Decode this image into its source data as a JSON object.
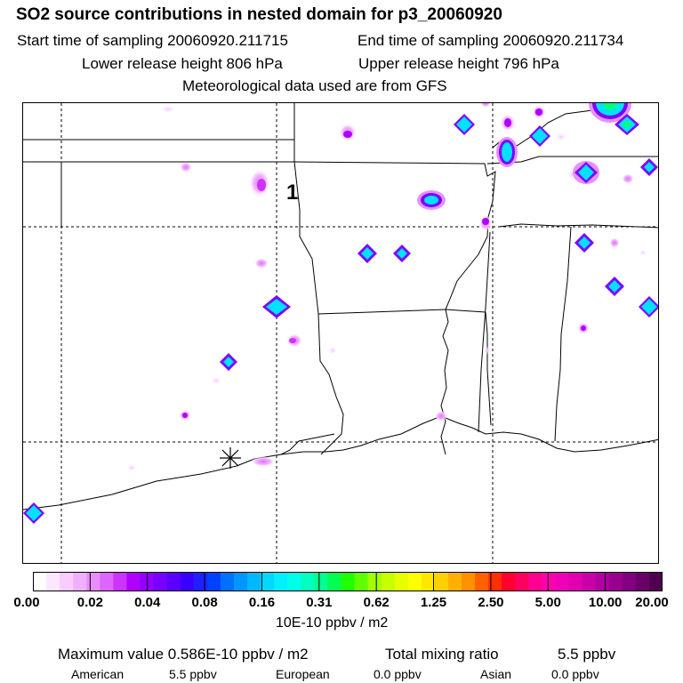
{
  "title": "SO2 source contributions in nested domain for p3_20060920",
  "header": {
    "start_time": "Start time of sampling 20060920.211715",
    "end_time": "End time of sampling 20060920.211734",
    "lower_height": "Lower release height  806 hPa",
    "upper_height": "Upper release height  796 hPa",
    "met_data": "Meteorological data used are from GFS"
  },
  "map": {
    "marker_label": "1",
    "source_symbol": "star-icon"
  },
  "colorbar": {
    "ticks": [
      "0.00",
      "0.02",
      "0.04",
      "0.08",
      "0.16",
      "0.31",
      "0.62",
      "1.25",
      "2.50",
      "5.00",
      "10.00",
      "20.00"
    ],
    "colors": [
      "#ffffff",
      "#fde6ff",
      "#f9ccff",
      "#f0b0ff",
      "#e98cff",
      "#dd66ff",
      "#cc33ff",
      "#b000ff",
      "#9200ff",
      "#7700ff",
      "#5b00ff",
      "#3a00ff",
      "#2020ff",
      "#0040ff",
      "#0070ff",
      "#0096ff",
      "#00b8ff",
      "#00d8ff",
      "#00f0ff",
      "#00ffe8",
      "#00ffc0",
      "#00ff90",
      "#00ff50",
      "#20ff00",
      "#60ff00",
      "#a0ff00",
      "#c8ff00",
      "#e8ff00",
      "#ffff00",
      "#ffe800",
      "#ffd000",
      "#ffb000",
      "#ff9000",
      "#ff6000",
      "#ff3000",
      "#ff0030",
      "#ff0060",
      "#ff0090",
      "#ff00b0",
      "#f000b8",
      "#e000b0",
      "#c800a8",
      "#b000a0",
      "#980090",
      "#800080",
      "#680068",
      "#500050"
    ],
    "units": "10E-10 ppbv / m2"
  },
  "summary": {
    "max_label": "Maximum value  0.586E-10 ppbv / m2",
    "total_label": "Total mixing ratio",
    "total_value": "5.5 ppbv",
    "regions": [
      {
        "name": "American",
        "value": "5.5 ppbv"
      },
      {
        "name": "European",
        "value": "0.0 ppbv"
      },
      {
        "name": "Asian",
        "value": "0.0 ppbv"
      }
    ]
  }
}
